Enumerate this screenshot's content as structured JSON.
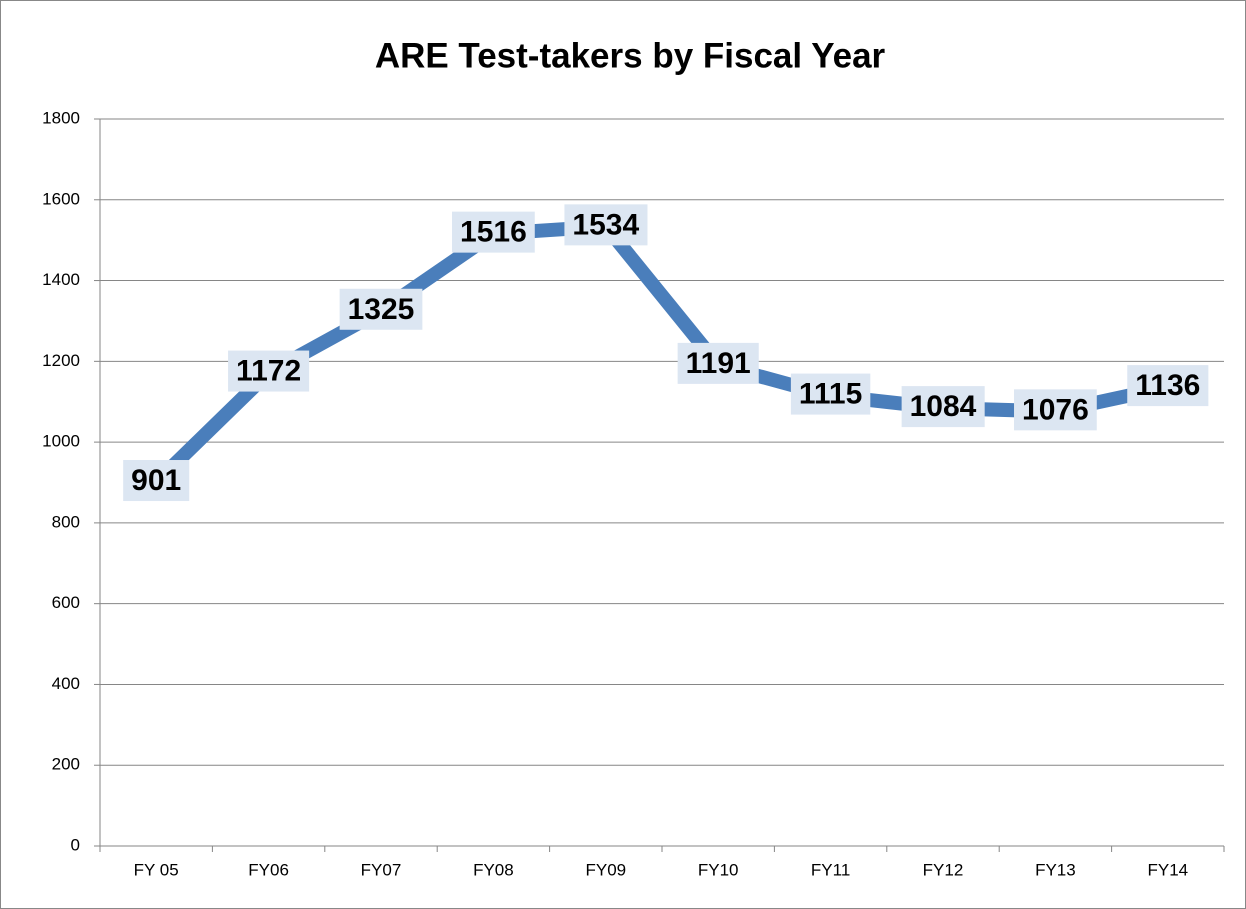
{
  "chart_data": {
    "type": "line",
    "title": "ARE Test-takers by Fiscal Year",
    "categories": [
      "FY 05",
      "FY06",
      "FY07",
      "FY08",
      "FY09",
      "FY10",
      "FY11",
      "FY12",
      "FY13",
      "FY14"
    ],
    "series": [
      {
        "name": "Test-takers",
        "color": "#4a7ebb",
        "values": [
          901,
          1172,
          1325,
          1516,
          1534,
          1191,
          1115,
          1084,
          1076,
          1136
        ]
      }
    ],
    "ylim": [
      0,
      1800
    ],
    "yticks": [
      0,
      200,
      400,
      600,
      800,
      1000,
      1200,
      1400,
      1600,
      1800
    ],
    "grid": true,
    "legend": false
  }
}
